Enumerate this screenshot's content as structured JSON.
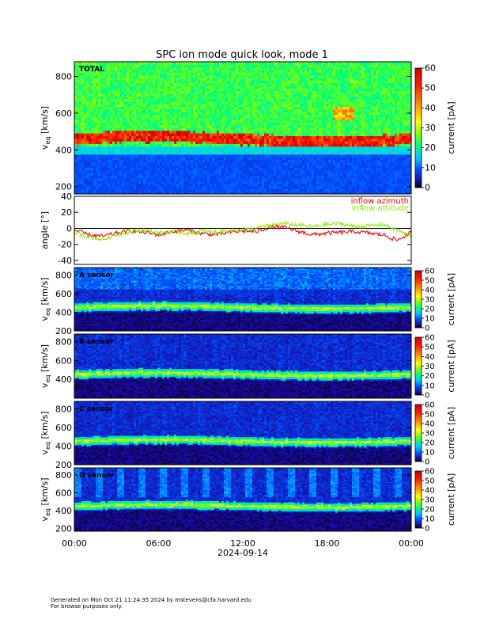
{
  "title": "SPC ion mode quick look, mode 1",
  "time_axis": {
    "ticks": [
      "00:00",
      "06:00",
      "12:00",
      "18:00",
      "00:00"
    ],
    "date_label": "2024-09-14"
  },
  "chart_data": [
    {
      "type": "heatmap",
      "panel_label": "TOTAL",
      "ylabel": "v_eq [km/s]",
      "ylim": [
        160,
        880
      ],
      "yticks": [
        200,
        400,
        600,
        800
      ],
      "colorbar": {
        "label": "current [pA]",
        "range": [
          0,
          60
        ],
        "ticks": [
          0,
          10,
          20,
          30,
          40,
          50,
          60
        ]
      },
      "description": "broad background ~20 pA; intense band 430-490 km/s"
    },
    {
      "type": "line",
      "ylabel": "angle [°]",
      "ylim": [
        -45,
        40
      ],
      "yticks": [
        -40,
        -20,
        0,
        20,
        40
      ],
      "series": [
        {
          "name": "inflow azimuth",
          "color": "#ff0000",
          "x_hours": [
            0,
            1,
            2,
            3,
            4,
            5,
            6,
            7,
            8,
            9,
            10,
            11,
            12,
            13,
            14,
            15,
            16,
            17,
            18,
            19,
            20,
            21,
            22,
            23,
            24
          ],
          "values": [
            -2,
            -8,
            -10,
            -6,
            -3,
            -5,
            -8,
            -4,
            -2,
            -6,
            -8,
            -5,
            -3,
            -4,
            2,
            1,
            -4,
            -8,
            -6,
            -5,
            -4,
            -6,
            -8,
            -15,
            -5
          ]
        },
        {
          "name": "inflow attitude",
          "color": "#88ee00",
          "x_hours": [
            0,
            1,
            2,
            3,
            4,
            5,
            6,
            7,
            8,
            9,
            10,
            11,
            12,
            13,
            14,
            15,
            16,
            17,
            18,
            19,
            20,
            21,
            22,
            23,
            24
          ],
          "values": [
            -5,
            -10,
            -14,
            -8,
            -4,
            -2,
            -6,
            -4,
            -6,
            -3,
            -5,
            -3,
            -2,
            0,
            4,
            6,
            4,
            2,
            5,
            6,
            2,
            3,
            5,
            -2,
            -10
          ]
        }
      ]
    },
    {
      "type": "heatmap",
      "panel_label": "A sensor",
      "ylabel": "v_eq [km/s]",
      "ylim": [
        200,
        880
      ],
      "yticks": [
        200,
        400,
        600,
        800
      ],
      "colorbar": {
        "label": "current [pA]",
        "range": [
          0,
          60
        ],
        "ticks": [
          0,
          10,
          20,
          30,
          40,
          50,
          60
        ]
      },
      "description": "peak band ~460 km/s"
    },
    {
      "type": "heatmap",
      "panel_label": "B sensor",
      "ylabel": "v_eq [km/s]",
      "ylim": [
        200,
        880
      ],
      "yticks": [
        400,
        600,
        800
      ],
      "colorbar": {
        "label": "current [pA]",
        "range": [
          0,
          60
        ],
        "ticks": [
          0,
          10,
          20,
          30,
          40,
          50,
          60
        ]
      },
      "description": "peak band ~460 km/s"
    },
    {
      "type": "heatmap",
      "panel_label": "C sensor",
      "ylabel": "v_eq [km/s]",
      "ylim": [
        200,
        880
      ],
      "yticks": [
        200,
        400,
        600,
        800
      ],
      "colorbar": {
        "label": "current [pA]",
        "range": [
          0,
          60
        ],
        "ticks": [
          0,
          10,
          20,
          30,
          40,
          50,
          60
        ]
      },
      "description": "peak band ~470 km/s"
    },
    {
      "type": "heatmap",
      "panel_label": "D sensor",
      "ylabel": "v_eq [km/s]",
      "ylim": [
        170,
        880
      ],
      "yticks": [
        200,
        400,
        600,
        800
      ],
      "colorbar": {
        "label": "current [pA]",
        "range": [
          0,
          60
        ],
        "ticks": [
          0,
          10,
          20,
          30,
          40,
          50,
          60
        ]
      },
      "description": "peak band ~460 km/s"
    }
  ],
  "footer": {
    "line1": "Generated on Mon Oct 21 11:24:35 2024 by mstevens@cfa.harvard.edu",
    "line2": "For browse purposes only."
  }
}
